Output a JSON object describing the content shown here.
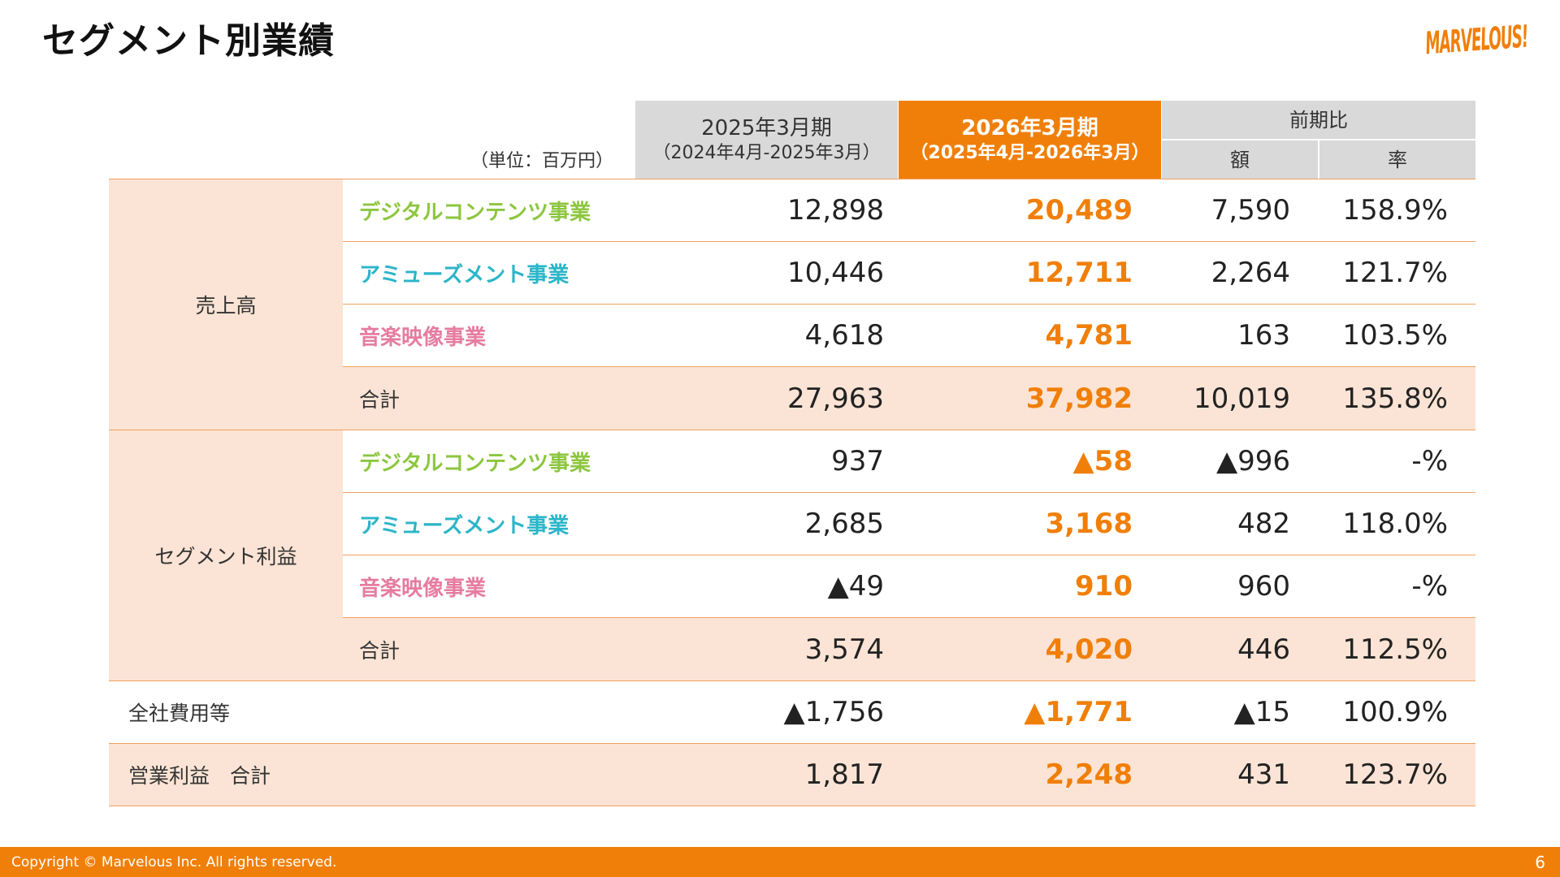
{
  "title": "セグメント別業績",
  "logo_text": "MARVELOUS!",
  "unit_label": "（単位：百万円）",
  "columns": {
    "prev": {
      "line1": "2025年3月期",
      "line2": "（2024年4月-2025年3月）"
    },
    "cur": {
      "line1": "2026年3月期",
      "line2": "（2025年4月-2026年3月）"
    },
    "comparison": "前期比",
    "amount": "額",
    "rate": "率"
  },
  "groups": {
    "sales": "売上高",
    "segment_profit": "セグメント利益"
  },
  "rows": [
    {
      "label": "デジタルコンテンツ事業",
      "color": "#8dc63f",
      "prev": "12,898",
      "cur": "20,489",
      "diff": "7,590",
      "rate": "158.9%"
    },
    {
      "label": "アミューズメント事業",
      "color": "#2bb5c8",
      "prev": "10,446",
      "cur": "12,711",
      "diff": "2,264",
      "rate": "121.7%"
    },
    {
      "label": "音楽映像事業",
      "color": "#e67ca0",
      "prev": "4,618",
      "cur": "4,781",
      "diff": "163",
      "rate": "103.5%"
    },
    {
      "label": "合計",
      "prev": "27,963",
      "cur": "37,982",
      "diff": "10,019",
      "rate": "135.8%"
    },
    {
      "label": "デジタルコンテンツ事業",
      "color": "#8dc63f",
      "prev": "937",
      "cur": "▲58",
      "diff": "▲996",
      "rate": "-%"
    },
    {
      "label": "アミューズメント事業",
      "color": "#2bb5c8",
      "prev": "2,685",
      "cur": "3,168",
      "diff": "482",
      "rate": "118.0%"
    },
    {
      "label": "音楽映像事業",
      "color": "#e67ca0",
      "prev": "▲49",
      "cur": "910",
      "diff": "960",
      "rate": "-%"
    },
    {
      "label": "合計",
      "prev": "3,574",
      "cur": "4,020",
      "diff": "446",
      "rate": "112.5%"
    },
    {
      "label": "全社費用等",
      "prev": "▲1,756",
      "cur": "▲1,771",
      "diff": "▲15",
      "rate": "100.9%"
    },
    {
      "label": "営業利益　合計",
      "prev": "1,817",
      "cur": "2,248",
      "diff": "431",
      "rate": "123.7%"
    }
  ],
  "footer": {
    "copyright": "Copyright © Marvelous Inc. All rights reserved.",
    "page": "6"
  }
}
